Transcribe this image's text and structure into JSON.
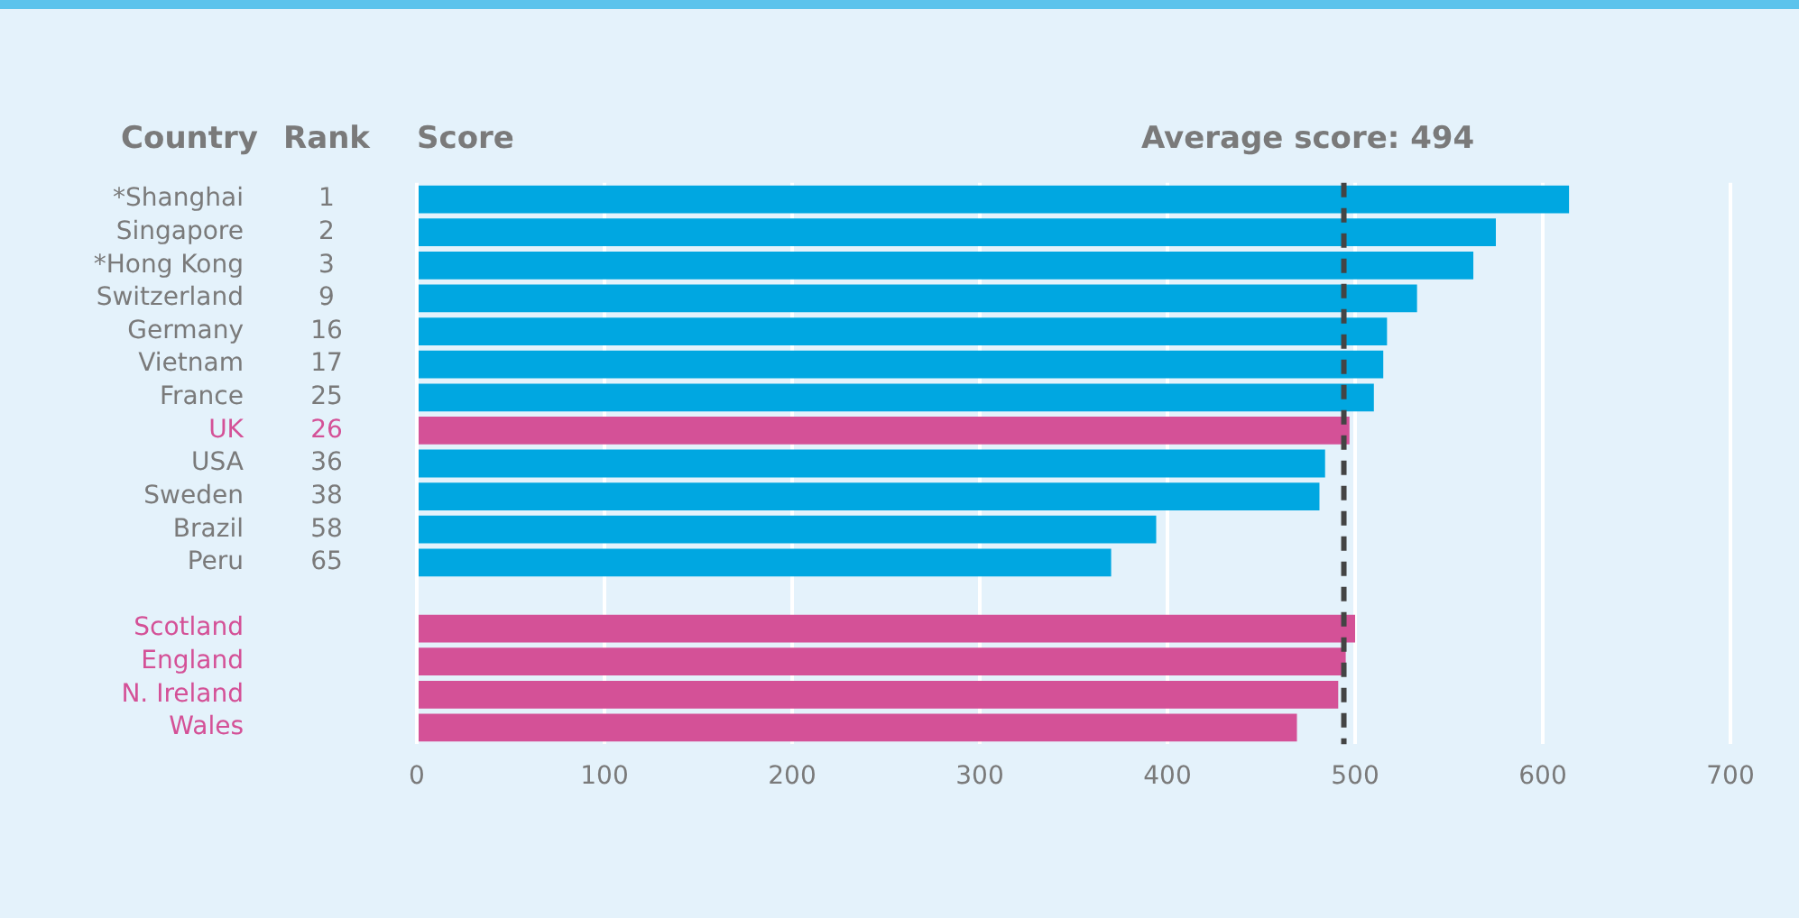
{
  "chart_data": {
    "type": "bar",
    "orientation": "horizontal",
    "categories": [
      "*Shanghai",
      "Singapore",
      "*Hong Kong",
      "Switzerland",
      "Germany",
      "Vietnam",
      "France",
      "UK",
      "USA",
      "Sweden",
      "Brazil",
      "Peru",
      null,
      "Scotland",
      "England",
      "N. Ireland",
      "Wales"
    ],
    "values": [
      614,
      575,
      563,
      533,
      517,
      515,
      510,
      497,
      484,
      481,
      394,
      370,
      null,
      500,
      495,
      491,
      469
    ],
    "colors": [
      "#00a7e1",
      "#00a7e1",
      "#00a7e1",
      "#00a7e1",
      "#00a7e1",
      "#00a7e1",
      "#00a7e1",
      "#d45197",
      "#00a7e1",
      "#00a7e1",
      "#00a7e1",
      "#00a7e1",
      "#00a7e1",
      "#d45197",
      "#d45197",
      "#d45197",
      "#d45197"
    ],
    "xlim": [
      0,
      700
    ],
    "xticks": [
      0,
      100,
      200,
      300,
      400,
      500,
      600,
      700
    ],
    "grid": "x",
    "legend": false,
    "ref_lines": [
      {
        "axis": "x",
        "value": 494,
        "label": "Average score: 494",
        "color": "#444444",
        "line_style": "dashed"
      }
    ],
    "annotations": [
      "Country",
      "Rank",
      "Score",
      "1",
      "2",
      "3",
      "9",
      "16",
      "17",
      "25",
      "26",
      "36",
      "38",
      "58",
      "65"
    ]
  }
}
